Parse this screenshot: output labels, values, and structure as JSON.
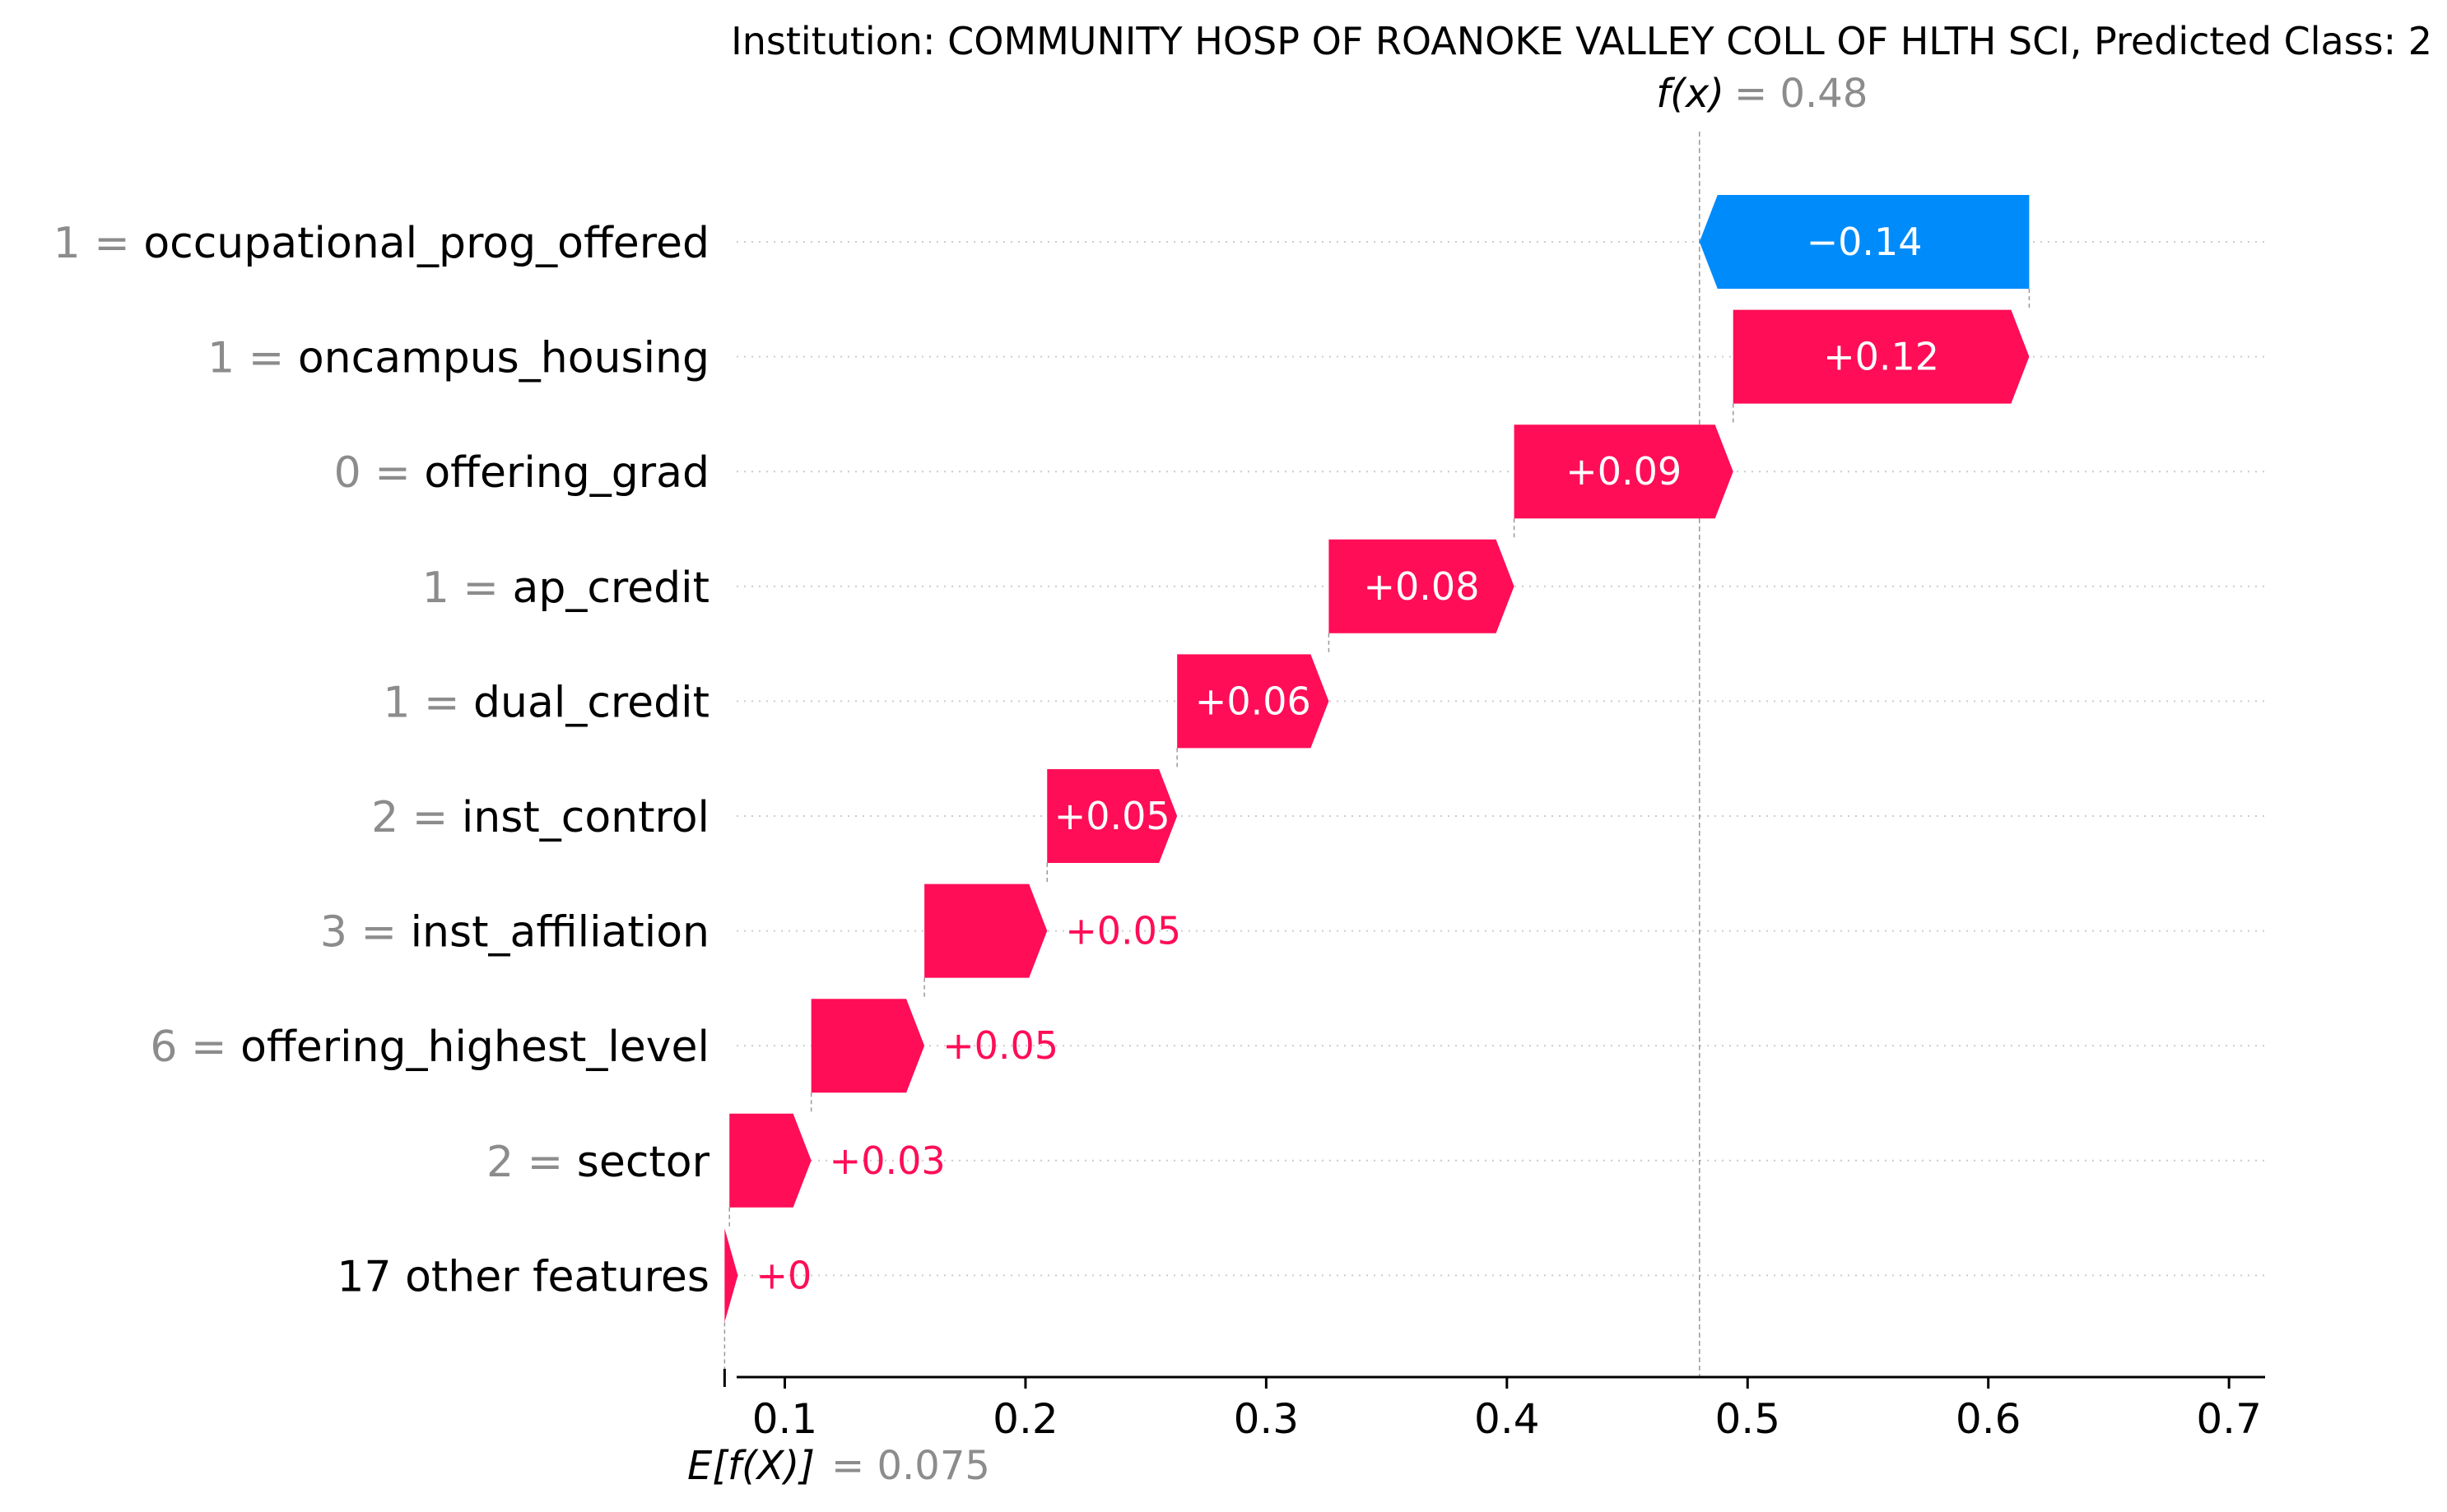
{
  "chart_data": {
    "type": "waterfall",
    "title": "Institution: COMMUNITY HOSP OF ROANOKE VALLEY COLL OF HLTH SCI, Predicted Class: 2",
    "fx": {
      "label": "f(x)",
      "value_text": "= 0.48",
      "value": 0.48
    },
    "base": {
      "label": "E[f(X)]",
      "value_text": "= 0.075",
      "value": 0.075
    },
    "xlim": [
      0.08,
      0.715
    ],
    "xticks": [
      0.1,
      0.2,
      0.3,
      0.4,
      0.5,
      0.6,
      0.7
    ],
    "xtick_labels": [
      "0.1",
      "0.2",
      "0.3",
      "0.4",
      "0.5",
      "0.6",
      "0.7"
    ],
    "features": [
      {
        "value": "1 =",
        "name": "occupational_prog_offered",
        "shap": -0.14,
        "label": "−0.14",
        "start": 0.617,
        "end": 0.48
      },
      {
        "value": "1 =",
        "name": "oncampus_housing",
        "shap": 0.12,
        "label": "+0.12",
        "start": 0.494,
        "end": 0.617
      },
      {
        "value": "0 =",
        "name": "offering_grad",
        "shap": 0.09,
        "label": "+0.09",
        "start": 0.403,
        "end": 0.494
      },
      {
        "value": "1 =",
        "name": "ap_credit",
        "shap": 0.08,
        "label": "+0.08",
        "start": 0.326,
        "end": 0.403
      },
      {
        "value": "1 =",
        "name": "dual_credit",
        "shap": 0.06,
        "label": "+0.06",
        "start": 0.263,
        "end": 0.326
      },
      {
        "value": "2 =",
        "name": "inst_control",
        "shap": 0.05,
        "label": "+0.05",
        "start": 0.209,
        "end": 0.263
      },
      {
        "value": "3 =",
        "name": "inst_affiliation",
        "shap": 0.05,
        "label": "+0.05",
        "start": 0.158,
        "end": 0.209
      },
      {
        "value": "6 =",
        "name": "offering_highest_level",
        "shap": 0.05,
        "label": "+0.05",
        "start": 0.111,
        "end": 0.158
      },
      {
        "value": "2 =",
        "name": "sector",
        "shap": 0.03,
        "label": "+0.03",
        "start": 0.077,
        "end": 0.111
      },
      {
        "value": "",
        "name": "17 other features",
        "shap": 0.0,
        "label": "+0",
        "start": 0.075,
        "end": 0.0805
      }
    ],
    "colors": {
      "positive": "#ff0d57",
      "negative": "#008bfb",
      "grid": "#cccccc",
      "guide": "#999999"
    }
  }
}
